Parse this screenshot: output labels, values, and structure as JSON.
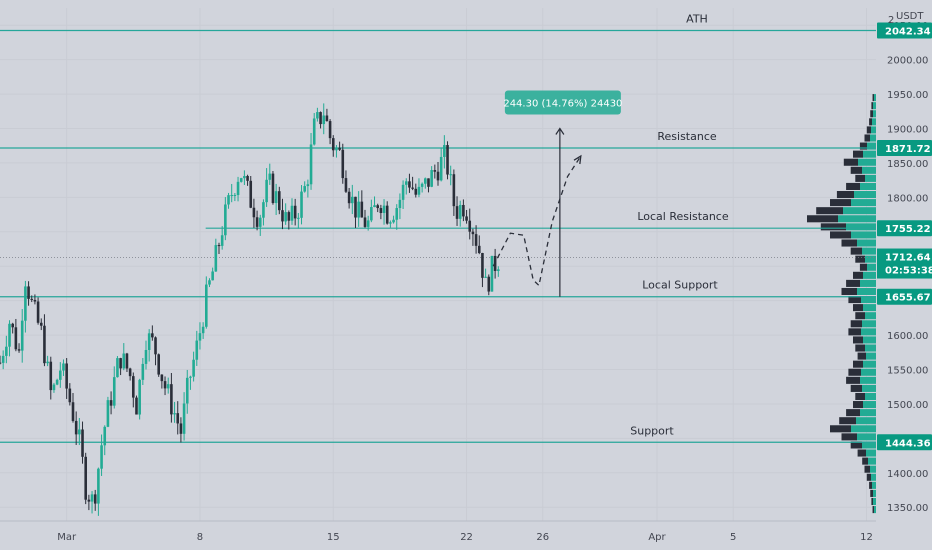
{
  "chart_data": {
    "type": "candlestick",
    "symbol_currency": "USDT",
    "scale_marker": "2",
    "y_axis": {
      "ticks": [
        1350,
        1400,
        1450,
        1500,
        1550,
        1600,
        1650,
        1700,
        1750,
        1800,
        1850,
        1900,
        1950,
        2000,
        2050
      ],
      "tick_labels": [
        "1350.00",
        "1400.00",
        "1450.00",
        "1500.00",
        "1550.00",
        "1600.00",
        "1650.00",
        "1700.00",
        "1750.00",
        "1800.00",
        "1850.00",
        "1900.00",
        "1950.00",
        "2000.00",
        "2050.00"
      ],
      "range": [
        1330,
        2075
      ]
    },
    "x_axis": {
      "labels": [
        "Mar",
        "8",
        "15",
        "22",
        "26",
        "Apr",
        "5",
        "12"
      ],
      "label_day_index": [
        0,
        7,
        14,
        21,
        25,
        31,
        35,
        42
      ],
      "range_days": [
        -3.5,
        42.5
      ]
    },
    "horizontal_levels": [
      {
        "label": "ATH",
        "price": 2042.34,
        "price_label": "2042.34"
      },
      {
        "label": "Resistance",
        "price": 1871.72,
        "price_label": "1871.72"
      },
      {
        "label": "Local Resistance",
        "price": 1755.22,
        "price_label": "1755.22"
      },
      {
        "label": "Local Support",
        "price": 1655.67,
        "price_label": "1655.67"
      },
      {
        "label": "Support",
        "price": 1444.36,
        "price_label": "1444.36"
      }
    ],
    "current_price": {
      "price": 1712.64,
      "price_label": "1712.64",
      "countdown": "02:53:38"
    },
    "measure": {
      "label": "244.30 (14.76%) 24430",
      "from_price": 1655.67,
      "to_price": 1900.0,
      "day": 25.9
    },
    "projection_path": [
      {
        "day": 22.4,
        "price": 1700
      },
      {
        "day": 23.3,
        "price": 1748
      },
      {
        "day": 24.0,
        "price": 1745
      },
      {
        "day": 24.5,
        "price": 1680
      },
      {
        "day": 24.8,
        "price": 1672
      },
      {
        "day": 25.5,
        "price": 1765
      },
      {
        "day": 26.3,
        "price": 1830
      },
      {
        "day": 27.0,
        "price": 1860
      }
    ],
    "price_path": [
      {
        "day": -3.5,
        "price": 1560
      },
      {
        "day": -3.0,
        "price": 1620
      },
      {
        "day": -2.5,
        "price": 1575
      },
      {
        "day": -2.2,
        "price": 1690
      },
      {
        "day": -1.8,
        "price": 1640
      },
      {
        "day": -1.3,
        "price": 1600
      },
      {
        "day": -0.8,
        "price": 1510
      },
      {
        "day": -0.3,
        "price": 1555
      },
      {
        "day": 0.3,
        "price": 1490
      },
      {
        "day": 0.7,
        "price": 1440
      },
      {
        "day": 1.0,
        "price": 1380
      },
      {
        "day": 1.4,
        "price": 1355
      },
      {
        "day": 1.9,
        "price": 1455
      },
      {
        "day": 2.4,
        "price": 1520
      },
      {
        "day": 2.8,
        "price": 1570
      },
      {
        "day": 3.3,
        "price": 1545
      },
      {
        "day": 3.7,
        "price": 1495
      },
      {
        "day": 4.1,
        "price": 1600
      },
      {
        "day": 4.6,
        "price": 1585
      },
      {
        "day": 5.1,
        "price": 1530
      },
      {
        "day": 5.5,
        "price": 1500
      },
      {
        "day": 6.0,
        "price": 1460
      },
      {
        "day": 6.4,
        "price": 1530
      },
      {
        "day": 6.9,
        "price": 1590
      },
      {
        "day": 7.3,
        "price": 1650
      },
      {
        "day": 7.7,
        "price": 1695
      },
      {
        "day": 8.2,
        "price": 1760
      },
      {
        "day": 8.7,
        "price": 1810
      },
      {
        "day": 9.1,
        "price": 1840
      },
      {
        "day": 9.6,
        "price": 1800
      },
      {
        "day": 10.1,
        "price": 1770
      },
      {
        "day": 10.6,
        "price": 1820
      },
      {
        "day": 11.1,
        "price": 1795
      },
      {
        "day": 11.6,
        "price": 1760
      },
      {
        "day": 12.1,
        "price": 1780
      },
      {
        "day": 12.6,
        "price": 1820
      },
      {
        "day": 13.0,
        "price": 1900
      },
      {
        "day": 13.5,
        "price": 1925
      },
      {
        "day": 13.9,
        "price": 1880
      },
      {
        "day": 14.4,
        "price": 1860
      },
      {
        "day": 14.9,
        "price": 1800
      },
      {
        "day": 15.4,
        "price": 1770
      },
      {
        "day": 15.9,
        "price": 1760
      },
      {
        "day": 16.4,
        "price": 1800
      },
      {
        "day": 16.9,
        "price": 1775
      },
      {
        "day": 17.4,
        "price": 1790
      },
      {
        "day": 17.9,
        "price": 1830
      },
      {
        "day": 18.4,
        "price": 1800
      },
      {
        "day": 18.9,
        "price": 1820
      },
      {
        "day": 19.4,
        "price": 1840
      },
      {
        "day": 19.9,
        "price": 1860
      },
      {
        "day": 20.4,
        "price": 1780
      },
      {
        "day": 20.9,
        "price": 1790
      },
      {
        "day": 21.3,
        "price": 1760
      },
      {
        "day": 21.7,
        "price": 1720
      },
      {
        "day": 22.0,
        "price": 1670
      },
      {
        "day": 22.4,
        "price": 1700
      },
      {
        "day": 22.7,
        "price": 1712
      }
    ]
  }
}
